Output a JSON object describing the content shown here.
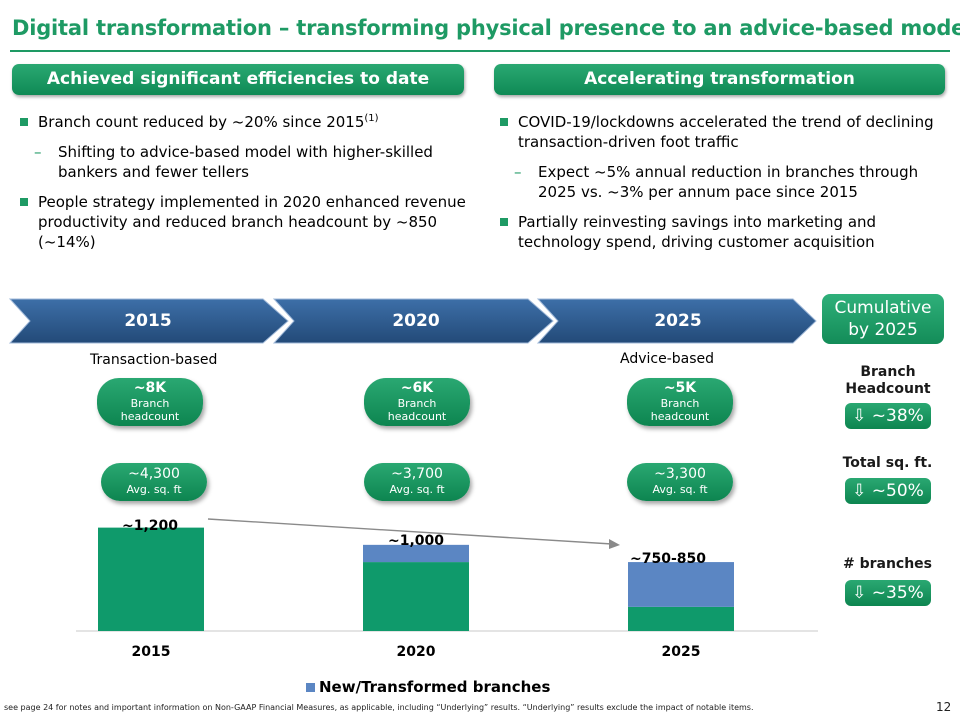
{
  "title": "Digital transformation – transforming physical presence to an advice-based model",
  "left_header": "Achieved significant efficiencies to date",
  "right_header": "Accelerating transformation",
  "left_bullets": [
    {
      "text": "Branch count reduced by ~20% since 2015",
      "sup": "(1)"
    },
    {
      "sub": true,
      "text": "Shifting to advice-based model with higher-skilled bankers and fewer tellers"
    },
    {
      "text": "People strategy implemented in 2020 enhanced revenue productivity and reduced branch headcount by ~850 (~14%)"
    }
  ],
  "right_bullets": [
    {
      "text": "COVID-19/lockdowns accelerated the trend of declining transaction-driven foot traffic"
    },
    {
      "sub": true,
      "text": "Expect ~5% annual reduction in branches through 2025 vs. ~3% per annum pace since 2015"
    },
    {
      "text": "Partially reinvesting savings into marketing and technology spend, driving customer acquisition"
    }
  ],
  "timeline": {
    "years": [
      "2015",
      "2020",
      "2025"
    ],
    "cumulative_label": "Cumulative by 2025",
    "left_note": "Transaction-based",
    "right_note": "Advice-based"
  },
  "headcount": [
    {
      "value": "~8K",
      "label": "Branch headcount"
    },
    {
      "value": "~6K",
      "label": "Branch headcount"
    },
    {
      "value": "~5K",
      "label": "Branch headcount"
    }
  ],
  "sqft": [
    {
      "value": "~4,300",
      "label": "Avg. sq. ft"
    },
    {
      "value": "~3,700",
      "label": "Avg. sq. ft"
    },
    {
      "value": "~3,300",
      "label": "Avg. sq. ft"
    }
  ],
  "metrics": [
    {
      "title": "Branch Headcount",
      "value": "⇩ ~38%"
    },
    {
      "title": "Total sq. ft.",
      "value": "⇩ ~50%"
    },
    {
      "title": "#  branches",
      "value": "⇩ ~35%"
    }
  ],
  "chart_data": {
    "type": "bar",
    "stacked": true,
    "categories": [
      "2015",
      "2020",
      "2025"
    ],
    "series": [
      {
        "name": "",
        "color": "#0f9a6b",
        "values": [
          1200,
          800,
          280
        ]
      },
      {
        "name": "New/Transformed branches",
        "color": "#5b86c3",
        "values": [
          0,
          200,
          520
        ]
      }
    ],
    "data_labels": [
      "~1,200",
      "~1,000",
      "~750-850"
    ],
    "legend": "bottom",
    "ylim": [
      0,
      1300
    ]
  },
  "footnote": "see page 24 for notes and important information on  Non-GAAP Financial Measures, as applicable, including “Underlying” results. “Underlying” results exclude the impact of notable items.",
  "page_number": "12",
  "colors": {
    "green": "#1e9a64",
    "bar_green": "#0f9a6b",
    "bar_blue": "#5b86c3",
    "arrow_blue": "#2f5b8f"
  }
}
